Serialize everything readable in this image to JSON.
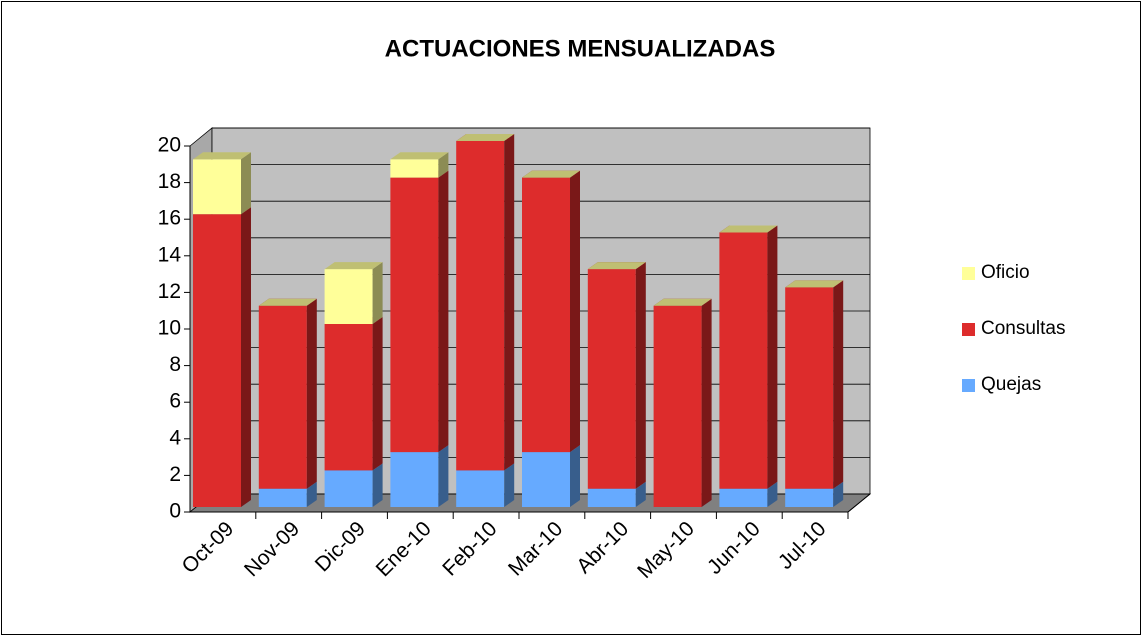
{
  "chart_data": {
    "type": "bar3d_stacked",
    "title": "ACTUACIONES MENSUALIZADAS",
    "categories": [
      "Oct-09",
      "Nov-09",
      "Dic-09",
      "Ene-10",
      "Feb-10",
      "Mar-10",
      "Abr-10",
      "May-10",
      "Jun-10",
      "Jul-10"
    ],
    "series": [
      {
        "name": "Quejas",
        "color": "#66aaff",
        "values": [
          0,
          1,
          2,
          3,
          2,
          3,
          1,
          0,
          1,
          1
        ]
      },
      {
        "name": "Consultas",
        "color": "#dd2c2c",
        "values": [
          16,
          10,
          8,
          15,
          18,
          15,
          12,
          11,
          14,
          11
        ]
      },
      {
        "name": "Oficio",
        "color": "#ffff99",
        "values": [
          3,
          0,
          3,
          1,
          0,
          0,
          0,
          0,
          0,
          0
        ]
      }
    ],
    "ylim": [
      0,
      20
    ],
    "yticks": [
      0,
      2,
      4,
      6,
      8,
      10,
      12,
      14,
      16,
      18,
      20
    ],
    "grid": true,
    "legend": "right"
  }
}
